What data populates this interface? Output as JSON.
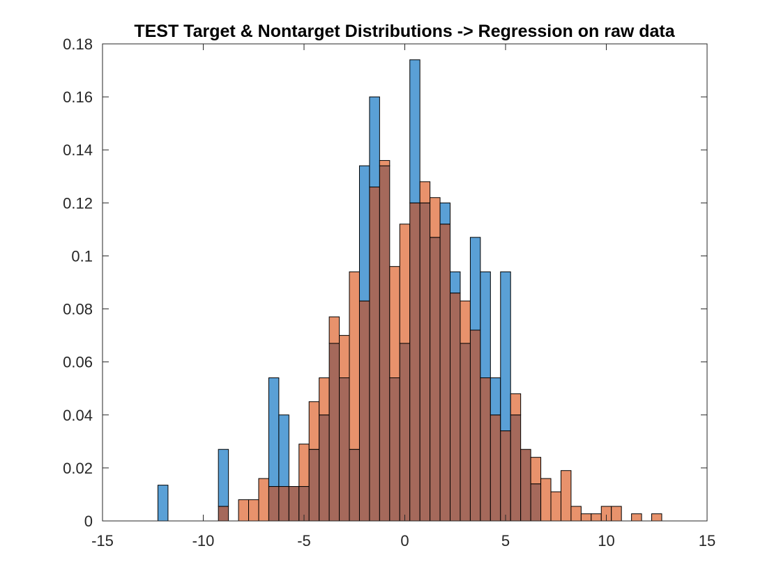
{
  "chart_data": {
    "type": "bar",
    "title": "TEST Target & Nontarget Distributions -> Regression on raw data",
    "xlabel": "",
    "ylabel": "",
    "xlim": [
      -15,
      15
    ],
    "ylim": [
      0,
      0.18
    ],
    "xticks": [
      -15,
      -10,
      -5,
      0,
      5,
      10,
      15
    ],
    "xtick_labels": [
      "-15",
      "-10",
      "-5",
      "0",
      "5",
      "10",
      "15"
    ],
    "yticks": [
      0,
      0.02,
      0.04,
      0.06,
      0.08,
      0.1,
      0.12,
      0.14,
      0.16,
      0.18
    ],
    "ytick_labels": [
      "0",
      "0.02",
      "0.04",
      "0.06",
      "0.08",
      "0.1",
      "0.12",
      "0.14",
      "0.16",
      "0.18"
    ],
    "bin_width": 0.5,
    "bin_edges_start": -12.25,
    "bin_edges_end": 12.75,
    "overlap_color": "#a5695b",
    "series": [
      {
        "color": "#5aa0d6",
        "values": [
          0.0135,
          0,
          0,
          0,
          0,
          0,
          0.027,
          0,
          0,
          0,
          0,
          0.054,
          0.04,
          0.013,
          0.013,
          0.027,
          0.04,
          0.067,
          0.054,
          0.027,
          0.134,
          0.16,
          0.134,
          0.054,
          0.067,
          0.174,
          0.12,
          0.107,
          0.12,
          0.094,
          0.067,
          0.107,
          0.094,
          0.054,
          0.094,
          0.04,
          0.027,
          0.014,
          0,
          0,
          0,
          0,
          0,
          0,
          0,
          0,
          0,
          0,
          0,
          0
        ]
      },
      {
        "color": "#e8926c",
        "values": [
          0,
          0,
          0,
          0,
          0,
          0,
          0.0055,
          0,
          0.008,
          0.008,
          0.016,
          0.013,
          0.013,
          0.013,
          0.029,
          0.045,
          0.054,
          0.077,
          0.07,
          0.094,
          0.083,
          0.126,
          0.136,
          0.096,
          0.112,
          0.12,
          0.128,
          0.122,
          0.112,
          0.086,
          0.083,
          0.072,
          0.054,
          0.04,
          0.034,
          0.048,
          0.027,
          0.024,
          0.016,
          0.011,
          0.019,
          0.0055,
          0.0027,
          0.0027,
          0.0055,
          0.0055,
          0,
          0.0027,
          0,
          0.0027
        ]
      }
    ]
  }
}
